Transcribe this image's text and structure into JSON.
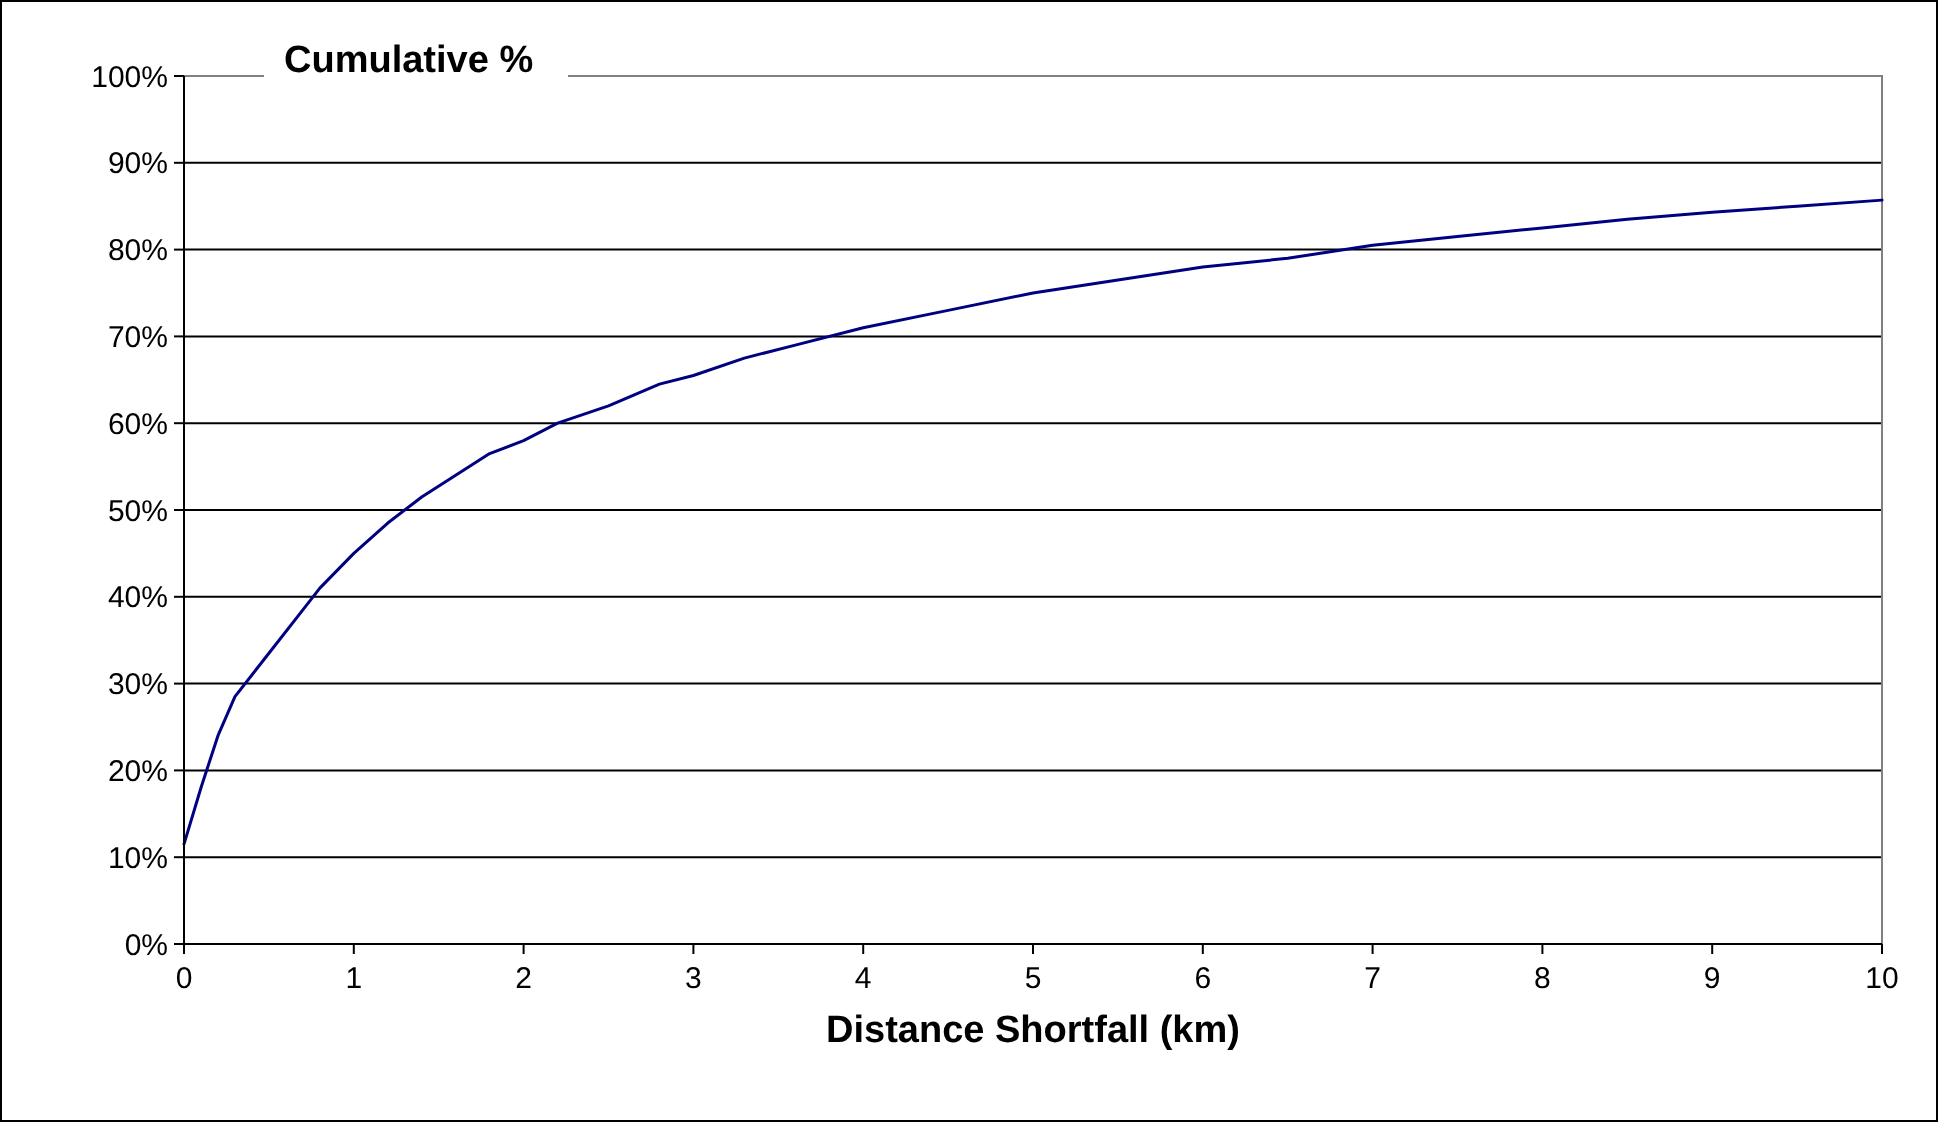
{
  "chart_data": {
    "type": "line",
    "title": "Cumulative %",
    "xlabel": "Distance Shortfall (km)",
    "x": [
      0,
      0.1,
      0.2,
      0.3,
      0.5,
      0.7,
      0.8,
      1.0,
      1.2,
      1.4,
      1.6,
      1.8,
      2.0,
      2.2,
      2.5,
      2.8,
      3.0,
      3.3,
      3.6,
      4.0,
      4.5,
      5.0,
      5.5,
      6.0,
      6.5,
      7.0,
      7.5,
      8.0,
      8.5,
      9.0,
      9.5,
      10
    ],
    "series": [
      {
        "color": "#000080",
        "values": [
          11.5,
          18,
          24,
          28.5,
          33.5,
          38.5,
          41,
          45,
          48.5,
          51.5,
          54,
          56.5,
          58,
          60,
          62,
          64.5,
          65.5,
          67.5,
          69,
          71,
          73,
          75,
          76.5,
          78,
          79,
          80.5,
          81.5,
          82.5,
          83.5,
          84.3,
          85,
          85.7
        ]
      }
    ],
    "xlim": [
      0,
      10
    ],
    "xticks": [
      0,
      1,
      2,
      3,
      4,
      5,
      6,
      7,
      8,
      9,
      10
    ],
    "ylim": [
      0,
      100
    ],
    "yticks": [
      {
        "value": 0,
        "label": "0%"
      },
      {
        "value": 10,
        "label": "10%"
      },
      {
        "value": 20,
        "label": "20%"
      },
      {
        "value": 30,
        "label": "30%"
      },
      {
        "value": 40,
        "label": "40%"
      },
      {
        "value": 50,
        "label": "50%"
      },
      {
        "value": 60,
        "label": "60%"
      },
      {
        "value": 70,
        "label": "70%"
      },
      {
        "value": 80,
        "label": "80%"
      },
      {
        "value": 90,
        "label": "90%"
      },
      {
        "value": 100,
        "label": "100%"
      }
    ],
    "grid": "y",
    "marker": "none",
    "line_style": "solid"
  }
}
